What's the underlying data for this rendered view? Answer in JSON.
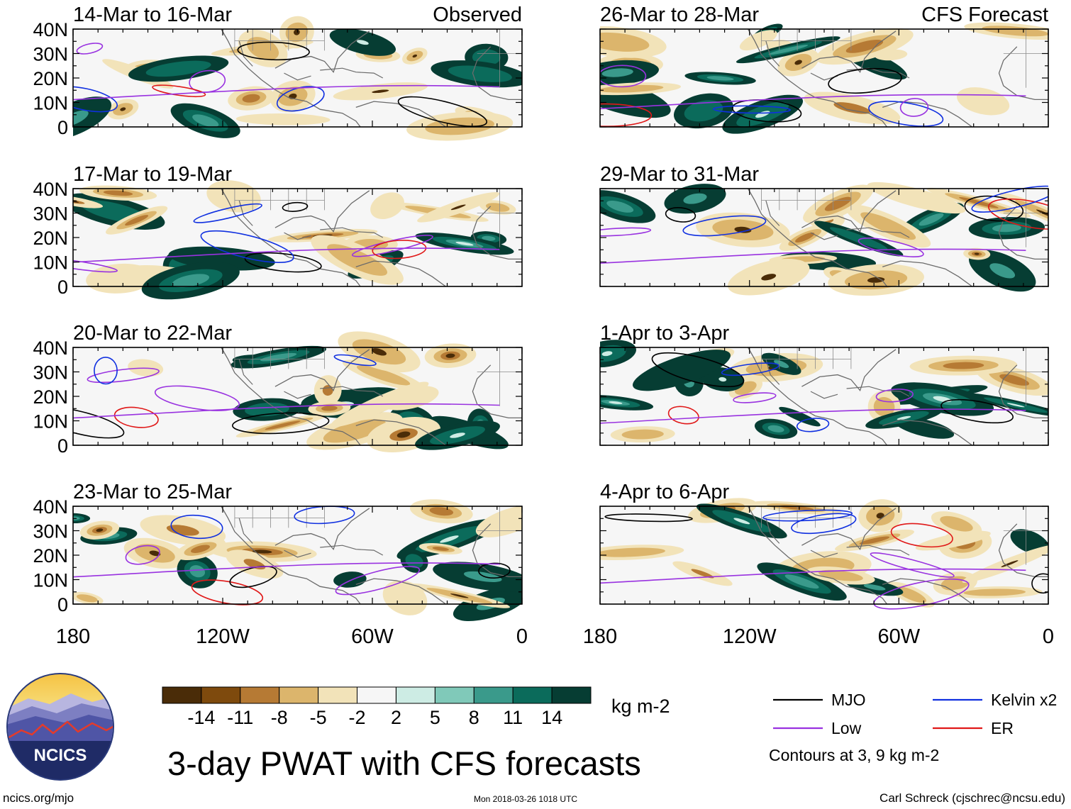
{
  "panels": [
    {
      "title": "14-Mar to 16-Mar",
      "tag": "Observed"
    },
    {
      "title": "17-Mar to 19-Mar",
      "tag": ""
    },
    {
      "title": "20-Mar to 22-Mar",
      "tag": ""
    },
    {
      "title": "23-Mar to 25-Mar",
      "tag": ""
    },
    {
      "title": "26-Mar to 28-Mar",
      "tag": "CFS Forecast"
    },
    {
      "title": "29-Mar to 31-Mar",
      "tag": ""
    },
    {
      "title": "1-Apr to 3-Apr",
      "tag": ""
    },
    {
      "title": "4-Apr to 6-Apr",
      "tag": ""
    }
  ],
  "lat_labels": [
    "40N",
    "30N",
    "20N",
    "10N",
    "0"
  ],
  "lon_labels": [
    "180",
    "120W",
    "60W",
    "0"
  ],
  "colorbar": {
    "colors": [
      "#4a2c08",
      "#7e4a0d",
      "#b67a34",
      "#dcb56c",
      "#f2e3b9",
      "#f6f6f6",
      "#cdece4",
      "#80c9b9",
      "#3a9a8b",
      "#0b6b5b",
      "#063d33"
    ],
    "labels": [
      "-14",
      "-11",
      "-8",
      "-5",
      "-2",
      "2",
      "5",
      "8",
      "11",
      "14"
    ],
    "units": "kg m-2"
  },
  "legend": {
    "items": [
      {
        "name": "MJO",
        "color": "#000000"
      },
      {
        "name": "Kelvin x2",
        "color": "#1030e0"
      },
      {
        "name": "Low",
        "color": "#9932e0"
      },
      {
        "name": "ER",
        "color": "#e01818"
      }
    ],
    "note": "Contours at 3, 9 kg m-2"
  },
  "main_title": "3-day PWAT with CFS forecasts",
  "logo_text": "NCICS",
  "footer": {
    "url": "ncics.org/mjo",
    "timestamp": "Mon 2018-03-26 1018 UTC",
    "author": "Carl Schreck (cjschrec@ncsu.edu)"
  }
}
